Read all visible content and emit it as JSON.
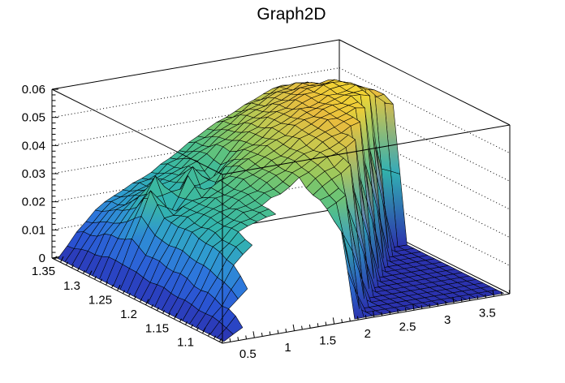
{
  "chart_data": {
    "type": "surface3d",
    "title": "Graph2D",
    "x_axis": {
      "min": 0.1,
      "max": 3.7,
      "tick_values": [
        0.5,
        1,
        1.5,
        2,
        2.5,
        3,
        3.5
      ],
      "tick_labels": [
        "0.5",
        "1",
        "1.5",
        "2",
        "2.5",
        "3",
        "3.5"
      ],
      "minor_step": 0.1
    },
    "y_axis": {
      "min": 1.065,
      "max": 1.365,
      "tick_values": [
        1.1,
        1.15,
        1.2,
        1.25,
        1.3,
        1.35
      ],
      "tick_labels": [
        "1.1",
        "1.15",
        "1.2",
        "1.25",
        "1.3",
        "1.35"
      ],
      "minor_step": 0.01
    },
    "z_axis": {
      "min": 0,
      "max": 0.06,
      "tick_values": [
        0,
        0.01,
        0.02,
        0.03,
        0.04,
        0.05,
        0.06
      ],
      "tick_labels": [
        "0",
        "0.01",
        "0.02",
        "0.03",
        "0.04",
        "0.05",
        "0.06"
      ],
      "minor_step": 0.002,
      "grid_lines": [
        0.01,
        0.02,
        0.03,
        0.04,
        0.05
      ]
    },
    "surface": {
      "comment_nulls": "null = no data (white gap in Delaunay hull)",
      "x_count": 16,
      "y_count": 13,
      "z_grid": [
        [
          0,
          0.004,
          null,
          null,
          null,
          null,
          null,
          0,
          0,
          0,
          0,
          0,
          0,
          0,
          0,
          0
        ],
        [
          0,
          0.008,
          0.014,
          null,
          null,
          null,
          null,
          0.03,
          0,
          0,
          0,
          0,
          0,
          0,
          0,
          0
        ],
        [
          0,
          0.009,
          0.02,
          0.026,
          null,
          null,
          null,
          0.034,
          0.038,
          0,
          0,
          0,
          0,
          0,
          0,
          0
        ],
        [
          0,
          0.01,
          0.022,
          0.028,
          0.031,
          0.032,
          null,
          0.037,
          0.041,
          0.045,
          0,
          0,
          0,
          0,
          0,
          0
        ],
        [
          0,
          0.011,
          0.023,
          0.028,
          0.031,
          0.033,
          0.036,
          0.04,
          0.044,
          0.047,
          0.05,
          0,
          0,
          0,
          0,
          0
        ],
        [
          0,
          0.012,
          0.024,
          0.028,
          0.031,
          0.034,
          0.037,
          0.041,
          0.045,
          0.048,
          0.051,
          0.053,
          0,
          0,
          0,
          0
        ],
        [
          0,
          0.012,
          0.024,
          0.028,
          0.031,
          0.034,
          0.038,
          0.041,
          0.045,
          0.049,
          0.052,
          0.054,
          0.055,
          0,
          0,
          0
        ],
        [
          0,
          0.013,
          0.024,
          0.027,
          0.03,
          0.034,
          0.038,
          0.042,
          0.045,
          0.049,
          0.052,
          0.054,
          0.056,
          0.056,
          0,
          0
        ],
        [
          0,
          0.015,
          0.032,
          0.022,
          0.034,
          0.024,
          0.036,
          0.04,
          0.044,
          0.048,
          0.051,
          0.053,
          0.055,
          0.056,
          0.054,
          0.048
        ],
        [
          0,
          0.014,
          0.023,
          0.033,
          0.024,
          0.034,
          0.028,
          0.038,
          0.043,
          0.047,
          0.05,
          0.053,
          0.055,
          0.056,
          0.052,
          0.045
        ],
        [
          0,
          0.012,
          0.02,
          0.024,
          0.026,
          0.029,
          0.033,
          0.037,
          0.041,
          0.045,
          0.048,
          0.051,
          0.053,
          0.053,
          0.049,
          0.042
        ],
        [
          0,
          0.01,
          0.017,
          0.021,
          0.024,
          0.027,
          0.031,
          0.035,
          0.039,
          0.043,
          0.046,
          0.049,
          0.051,
          0.05,
          0.046,
          0.04
        ],
        [
          0,
          0.008,
          0.015,
          0.019,
          0.022,
          0.025,
          0.029,
          0.033,
          0.037,
          0.04,
          0.043,
          0.046,
          0.048,
          0.047,
          0.043,
          0.038
        ]
      ]
    },
    "palette": [
      [
        0.0,
        "#2b32ae"
      ],
      [
        0.1,
        "#2a4fd0"
      ],
      [
        0.22,
        "#2d74dc"
      ],
      [
        0.33,
        "#2f9bd0"
      ],
      [
        0.45,
        "#33b5ab"
      ],
      [
        0.57,
        "#4fc088"
      ],
      [
        0.68,
        "#8ec860"
      ],
      [
        0.78,
        "#c8c84e"
      ],
      [
        0.87,
        "#e8bc3e"
      ],
      [
        0.94,
        "#f2d633"
      ],
      [
        1.0,
        "#f7ef2e"
      ]
    ],
    "colors": {
      "background": "#ffffff",
      "frame": "#000000",
      "mesh_line": "#000000",
      "grid_dotted": "#000000"
    }
  }
}
